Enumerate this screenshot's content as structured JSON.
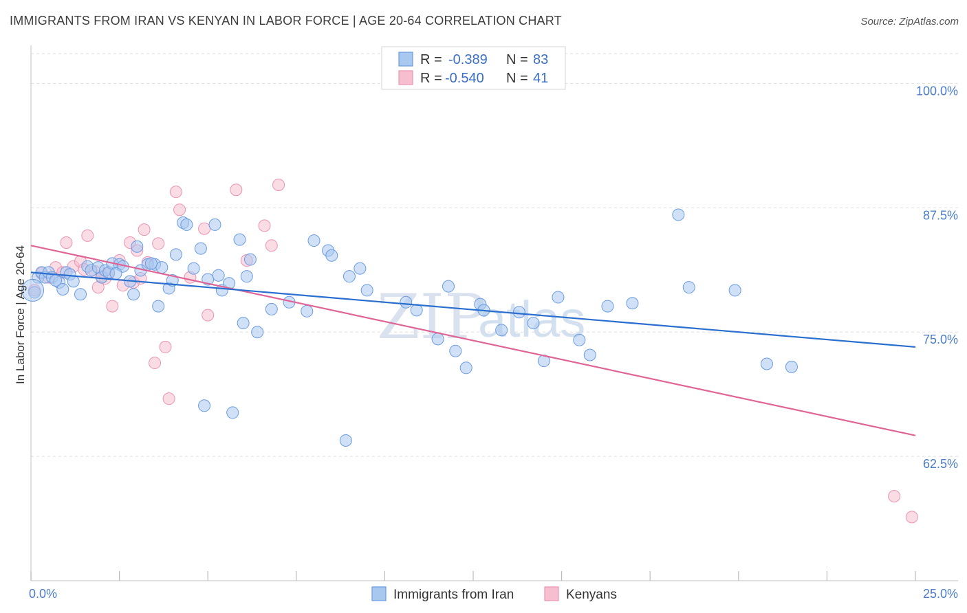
{
  "header": {
    "title": "IMMIGRANTS FROM IRAN VS KENYAN IN LABOR FORCE | AGE 20-64 CORRELATION CHART",
    "source": "Source: ZipAtlas.com"
  },
  "watermark": {
    "part1": "ZIP",
    "part2": "atlas"
  },
  "legend": {
    "rows": [
      {
        "r_label": "R =",
        "r_value": "-0.389",
        "n_label": "N =",
        "n_value": "83"
      },
      {
        "r_label": "R =",
        "r_value": "-0.540",
        "n_label": "N =",
        "n_value": "41"
      }
    ]
  },
  "bottom_legend": {
    "series1": "Immigrants from Iran",
    "series2": "Kenyans"
  },
  "colors": {
    "iran_fill": "#a9c8f0",
    "iran_stroke": "#6a9be0",
    "iran_line": "#2a6fcf",
    "kenya_fill": "#f6bfd0",
    "kenya_stroke": "#ec93b2",
    "kenya_line": "#e06496",
    "tick_text": "#4a7cc9",
    "grid": "#dddddd"
  },
  "chart_data": {
    "type": "scatter",
    "title": "IMMIGRANTS FROM IRAN VS KENYAN IN LABOR FORCE | AGE 20-64 CORRELATION CHART",
    "ylabel": "In Labor Force | Age 20-64",
    "xlabel": "",
    "xlim": [
      0,
      25
    ],
    "ylim": [
      50,
      103
    ],
    "x_tick_labels": [
      "0.0%",
      "25.0%"
    ],
    "y_ticks": [
      62.5,
      75.0,
      87.5,
      100.0
    ],
    "y_tick_labels": [
      "62.5%",
      "75.0%",
      "87.5%",
      "100.0%"
    ],
    "grid": true,
    "legend_position": "top-center",
    "series": [
      {
        "name": "Immigrants from Iran",
        "r": -0.389,
        "n": 83,
        "trend": {
          "x": [
            0,
            25
          ],
          "y": [
            81.0,
            73.5
          ]
        },
        "points": [
          [
            0.1,
            79.0
          ],
          [
            0.2,
            80.5
          ],
          [
            0.3,
            81.0
          ],
          [
            0.4,
            80.5
          ],
          [
            0.5,
            81.0
          ],
          [
            0.6,
            80.5
          ],
          [
            0.8,
            80.0
          ],
          [
            0.9,
            79.3
          ],
          [
            1.0,
            81.0
          ],
          [
            1.1,
            80.8
          ],
          [
            1.4,
            78.8
          ],
          [
            1.6,
            81.6
          ],
          [
            1.7,
            81.2
          ],
          [
            1.9,
            81.5
          ],
          [
            2.0,
            80.5
          ],
          [
            2.1,
            81.2
          ],
          [
            2.2,
            81.0
          ],
          [
            2.3,
            81.9
          ],
          [
            2.5,
            81.8
          ],
          [
            2.6,
            81.6
          ],
          [
            2.8,
            80.1
          ],
          [
            2.9,
            78.8
          ],
          [
            3.0,
            83.6
          ],
          [
            3.1,
            81.2
          ],
          [
            3.3,
            81.8
          ],
          [
            3.5,
            81.8
          ],
          [
            3.6,
            77.6
          ],
          [
            3.7,
            81.5
          ],
          [
            3.9,
            79.4
          ],
          [
            4.0,
            80.2
          ],
          [
            4.1,
            82.8
          ],
          [
            4.3,
            86.0
          ],
          [
            4.4,
            85.8
          ],
          [
            4.6,
            81.4
          ],
          [
            4.8,
            83.4
          ],
          [
            5.0,
            80.3
          ],
          [
            5.2,
            85.8
          ],
          [
            5.3,
            80.7
          ],
          [
            5.4,
            79.2
          ],
          [
            5.6,
            79.9
          ],
          [
            5.9,
            84.3
          ],
          [
            6.0,
            75.9
          ],
          [
            6.2,
            82.3
          ],
          [
            6.4,
            75.0
          ],
          [
            6.8,
            77.3
          ],
          [
            7.3,
            78.0
          ],
          [
            7.8,
            77.1
          ],
          [
            8.0,
            84.2
          ],
          [
            8.4,
            83.2
          ],
          [
            8.5,
            82.7
          ],
          [
            9.0,
            80.6
          ],
          [
            9.5,
            79.2
          ],
          [
            10.6,
            78.0
          ],
          [
            10.9,
            77.2
          ],
          [
            11.5,
            74.3
          ],
          [
            11.8,
            79.6
          ],
          [
            12.0,
            73.1
          ],
          [
            12.3,
            71.4
          ],
          [
            12.7,
            77.8
          ],
          [
            12.8,
            77.2
          ],
          [
            13.3,
            75.2
          ],
          [
            13.8,
            77.0
          ],
          [
            14.2,
            75.9
          ],
          [
            14.5,
            72.1
          ],
          [
            14.9,
            78.5
          ],
          [
            15.5,
            74.2
          ],
          [
            15.8,
            72.7
          ],
          [
            16.3,
            77.6
          ],
          [
            17.0,
            77.9
          ],
          [
            18.3,
            86.8
          ],
          [
            18.6,
            79.5
          ],
          [
            19.9,
            79.2
          ],
          [
            20.8,
            71.8
          ],
          [
            21.5,
            71.5
          ],
          [
            1.2,
            80.1
          ],
          [
            3.4,
            81.9
          ],
          [
            4.9,
            67.6
          ],
          [
            5.7,
            66.9
          ],
          [
            8.9,
            64.1
          ],
          [
            0.7,
            80.2
          ],
          [
            2.4,
            80.9
          ],
          [
            6.1,
            80.6
          ],
          [
            9.3,
            81.4
          ]
        ]
      },
      {
        "name": "Kenyans",
        "r": -0.54,
        "n": 41,
        "trend": {
          "x": [
            0,
            25
          ],
          "y": [
            83.7,
            64.6
          ]
        },
        "points": [
          [
            0.1,
            79.2
          ],
          [
            0.3,
            80.9
          ],
          [
            0.5,
            80.5
          ],
          [
            0.7,
            81.5
          ],
          [
            0.9,
            81.0
          ],
          [
            1.0,
            84.0
          ],
          [
            1.2,
            81.6
          ],
          [
            1.4,
            82.1
          ],
          [
            1.5,
            81.3
          ],
          [
            1.6,
            84.7
          ],
          [
            1.8,
            81.1
          ],
          [
            1.9,
            79.5
          ],
          [
            2.0,
            80.6
          ],
          [
            2.1,
            80.4
          ],
          [
            2.2,
            80.9
          ],
          [
            2.3,
            77.6
          ],
          [
            2.5,
            82.2
          ],
          [
            2.6,
            79.7
          ],
          [
            2.8,
            84.0
          ],
          [
            2.9,
            80.0
          ],
          [
            3.0,
            83.2
          ],
          [
            3.1,
            80.4
          ],
          [
            3.2,
            85.3
          ],
          [
            3.3,
            82.0
          ],
          [
            3.5,
            71.9
          ],
          [
            3.6,
            83.9
          ],
          [
            3.8,
            73.5
          ],
          [
            3.9,
            68.3
          ],
          [
            4.1,
            89.1
          ],
          [
            4.2,
            87.3
          ],
          [
            4.5,
            80.5
          ],
          [
            4.9,
            85.4
          ],
          [
            5.0,
            76.7
          ],
          [
            5.8,
            89.3
          ],
          [
            6.1,
            82.2
          ],
          [
            6.6,
            85.7
          ],
          [
            6.8,
            83.7
          ],
          [
            7.0,
            89.8
          ],
          [
            10.2,
            100.2
          ],
          [
            24.4,
            58.5
          ],
          [
            24.9,
            56.4
          ]
        ]
      }
    ]
  }
}
